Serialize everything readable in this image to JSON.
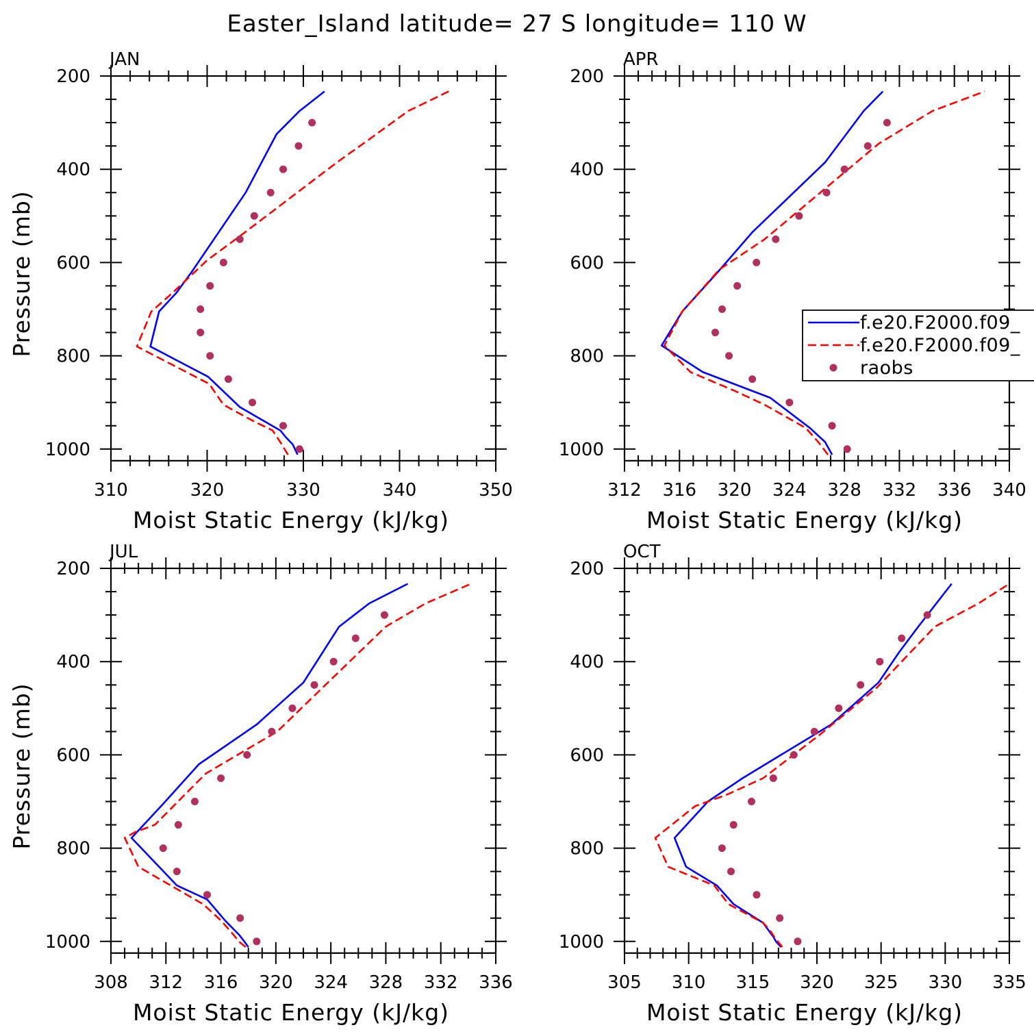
{
  "title": "Easter_Island  latitude= 27 S longitude= 110 W",
  "legend": {
    "entries": [
      {
        "label": "f.e20.F2000.f09_",
        "color": "#0000ff",
        "style": "solid"
      },
      {
        "label": "f.e20.F2000.f09_",
        "color": "#ff0000",
        "style": "dashed"
      },
      {
        "label": "raobs",
        "color": "#b03060",
        "style": "dots"
      }
    ]
  },
  "chart_data": [
    {
      "type": "line",
      "panel": "JAN",
      "xlabel": "Moist Static Energy (kJ/kg)",
      "ylabel": "Pressure (mb)",
      "xlim": [
        310,
        350
      ],
      "ylim": [
        1025,
        200
      ],
      "xticks": [
        310,
        320,
        330,
        340,
        350
      ],
      "xminor": 2,
      "yticks": [
        200,
        400,
        600,
        800,
        1000
      ],
      "yminor": 50,
      "series": [
        {
          "name": "f.e20.F2000.f09_ (solid)",
          "color": "#0000ff",
          "style": "solid",
          "x": [
            329.4,
            328.9,
            328.2,
            327.6,
            323.4,
            320.1,
            314.1,
            315.0,
            316.8,
            318.4,
            324.0,
            327.2,
            329.6,
            332.2
          ],
          "y": [
            1012,
            990,
            975,
            960,
            910,
            845,
            780,
            705,
            665,
            620,
            450,
            325,
            275,
            233
          ]
        },
        {
          "name": "f.e20.F2000.f09_ (dashed)",
          "color": "#ff0000",
          "style": "dashed",
          "x": [
            328.4,
            327.6,
            326.8,
            324.8,
            321.7,
            320.2,
            312.7,
            314.2,
            316.4,
            320.0,
            323.3,
            333.5,
            336.9,
            340.9,
            345.1
          ],
          "y": [
            1012,
            985,
            960,
            940,
            905,
            860,
            780,
            705,
            665,
            595,
            545,
            385,
            335,
            275,
            233
          ]
        },
        {
          "name": "raobs",
          "color": "#b03060",
          "style": "dots",
          "x": [
            329.6,
            327.9,
            324.7,
            322.2,
            320.3,
            319.3,
            319.3,
            320.3,
            321.7,
            323.4,
            324.9,
            326.6,
            327.9,
            329.5,
            330.9
          ],
          "y": [
            1000,
            950,
            900,
            850,
            800,
            750,
            700,
            650,
            600,
            550,
            500,
            450,
            400,
            350,
            300
          ]
        }
      ]
    },
    {
      "type": "line",
      "panel": "APR",
      "xlabel": "Moist Static Energy (kJ/kg)",
      "ylabel": "",
      "xlim": [
        312,
        340
      ],
      "ylim": [
        1025,
        200
      ],
      "xticks": [
        312,
        316,
        320,
        324,
        328,
        332,
        336,
        340
      ],
      "xminor": 1,
      "yticks": [
        200,
        400,
        600,
        800,
        1000
      ],
      "yminor": 50,
      "series": [
        {
          "name": "f.e20.F2000.f09_ (solid)",
          "color": "#0000ff",
          "style": "solid",
          "x": [
            327.1,
            326.6,
            325.5,
            322.6,
            317.7,
            314.7,
            316.2,
            318.8,
            321.3,
            326.6,
            329.4,
            330.8
          ],
          "y": [
            1012,
            985,
            955,
            890,
            835,
            778,
            705,
            620,
            535,
            385,
            275,
            233
          ]
        },
        {
          "name": "f.e20.F2000.f09_ (dashed)",
          "color": "#ff0000",
          "style": "dashed",
          "x": [
            326.8,
            326.1,
            325.2,
            322.2,
            320.0,
            316.8,
            314.9,
            316.2,
            318.9,
            322.2,
            330.5,
            334.4,
            338.2
          ],
          "y": [
            1012,
            985,
            955,
            905,
            875,
            835,
            778,
            705,
            615,
            550,
            345,
            275,
            233
          ]
        },
        {
          "name": "raobs",
          "color": "#b03060",
          "style": "dots",
          "x": [
            328.2,
            327.1,
            324.0,
            321.3,
            319.6,
            318.6,
            319.1,
            320.2,
            321.6,
            323.0,
            324.7,
            326.7,
            328.0,
            329.7,
            331.1
          ],
          "y": [
            1000,
            950,
            900,
            850,
            800,
            750,
            700,
            650,
            600,
            550,
            500,
            450,
            400,
            350,
            300
          ]
        }
      ]
    },
    {
      "type": "line",
      "panel": "JUL",
      "xlabel": "Moist Static Energy (kJ/kg)",
      "ylabel": "Pressure (mb)",
      "xlim": [
        308,
        336
      ],
      "ylim": [
        1025,
        200
      ],
      "xticks": [
        308,
        312,
        316,
        320,
        324,
        328,
        332,
        336
      ],
      "xminor": 1,
      "yticks": [
        200,
        400,
        600,
        800,
        1000
      ],
      "yminor": 50,
      "series": [
        {
          "name": "f.e20.F2000.f09_ (solid)",
          "color": "#0000ff",
          "style": "solid",
          "x": [
            318.0,
            317.7,
            317.3,
            316.3,
            315.0,
            312.8,
            309.5,
            311.8,
            314.4,
            318.6,
            322.0,
            324.6,
            326.8,
            329.6
          ],
          "y": [
            1012,
            1000,
            985,
            955,
            910,
            880,
            778,
            705,
            620,
            535,
            445,
            325,
            275,
            233
          ]
        },
        {
          "name": "f.e20.F2000.f09_ (dashed)",
          "color": "#ff0000",
          "style": "dashed",
          "x": [
            317.8,
            317.3,
            316.9,
            316.0,
            314.7,
            310.0,
            309.0,
            309.8,
            311.2,
            314.9,
            320.1,
            323.6,
            328.0,
            330.9,
            334.2
          ],
          "y": [
            1012,
            1000,
            985,
            955,
            920,
            840,
            778,
            765,
            750,
            640,
            550,
            450,
            325,
            275,
            233
          ]
        },
        {
          "name": "raobs",
          "color": "#b03060",
          "style": "dots",
          "x": [
            318.6,
            317.4,
            315.0,
            312.8,
            311.8,
            312.9,
            314.1,
            316.0,
            317.9,
            319.7,
            321.2,
            322.8,
            324.2,
            325.8,
            327.9
          ],
          "y": [
            1000,
            950,
            900,
            850,
            800,
            750,
            700,
            650,
            600,
            550,
            500,
            450,
            400,
            350,
            300
          ]
        }
      ]
    },
    {
      "type": "line",
      "panel": "OCT",
      "xlabel": "Moist Static Energy (kJ/kg)",
      "ylabel": "",
      "xlim": [
        305,
        335
      ],
      "ylim": [
        1025,
        200
      ],
      "xticks": [
        305,
        310,
        315,
        320,
        325,
        330,
        335
      ],
      "xminor": 1,
      "yticks": [
        200,
        400,
        600,
        800,
        1000
      ],
      "yminor": 50,
      "series": [
        {
          "name": "f.e20.F2000.f09_ (solid)",
          "color": "#0000ff",
          "style": "solid",
          "x": [
            317.2,
            316.8,
            316.6,
            315.8,
            313.5,
            312.2,
            309.8,
            308.9,
            311.5,
            314.2,
            317.2,
            321.1,
            324.8,
            326.4,
            327.9,
            330.5
          ],
          "y": [
            1012,
            1000,
            990,
            960,
            920,
            880,
            840,
            778,
            700,
            650,
            600,
            535,
            445,
            380,
            325,
            233
          ]
        },
        {
          "name": "f.e20.F2000.f09_ (dashed)",
          "color": "#ff0000",
          "style": "dashed",
          "x": [
            317.3,
            316.8,
            316.3,
            315.8,
            313.1,
            312.0,
            308.4,
            307.4,
            310.5,
            313.0,
            315.8,
            320.3,
            324.7,
            329.2,
            332.6,
            335.0
          ],
          "y": [
            1012,
            995,
            975,
            960,
            920,
            880,
            840,
            778,
            710,
            685,
            650,
            555,
            455,
            325,
            275,
            233
          ]
        },
        {
          "name": "raobs",
          "color": "#b03060",
          "style": "dots",
          "x": [
            318.5,
            317.1,
            315.3,
            313.3,
            312.6,
            313.5,
            314.9,
            316.6,
            318.2,
            319.8,
            321.7,
            323.4,
            324.9,
            326.6,
            328.6
          ],
          "y": [
            1000,
            950,
            900,
            850,
            800,
            750,
            700,
            650,
            600,
            550,
            500,
            450,
            400,
            350,
            300
          ]
        }
      ]
    }
  ]
}
